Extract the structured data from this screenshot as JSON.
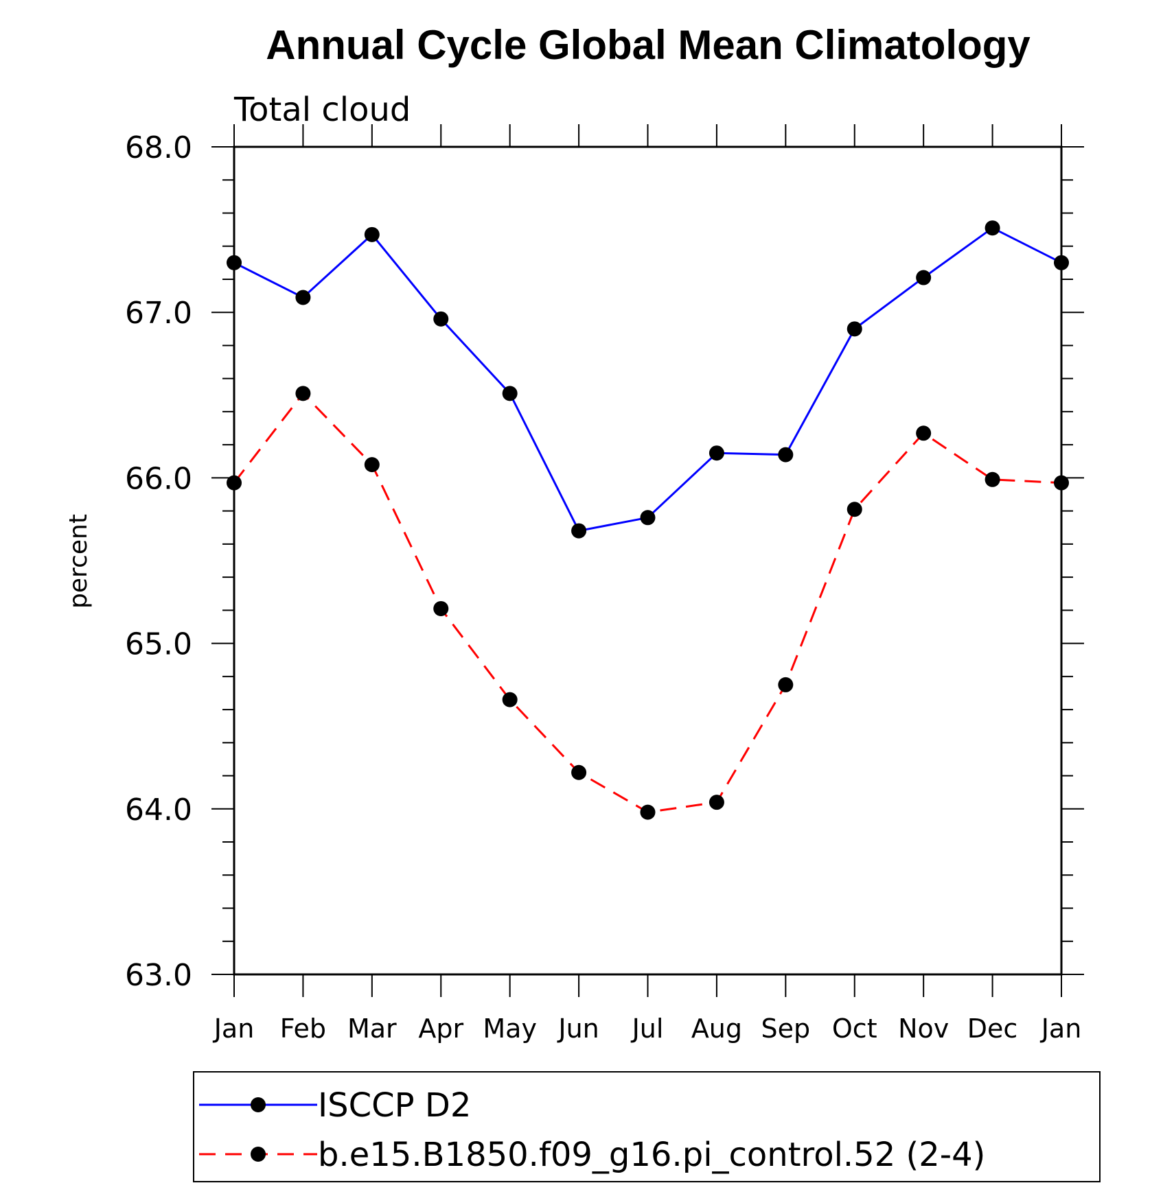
{
  "chart_data": {
    "type": "line",
    "title": "Annual Cycle Global Mean Climatology",
    "subtitle": "Total cloud",
    "xlabel": "",
    "ylabel": "percent",
    "categories": [
      "Jan",
      "Feb",
      "Mar",
      "Apr",
      "May",
      "Jun",
      "Jul",
      "Aug",
      "Sep",
      "Oct",
      "Nov",
      "Dec",
      "Jan"
    ],
    "ylim": [
      63.0,
      68.0
    ],
    "yticks": [
      "63.0",
      "64.0",
      "65.0",
      "66.0",
      "67.0",
      "68.0"
    ],
    "grid": false,
    "legend_position": "bottom",
    "series": [
      {
        "name": "ISCCP D2",
        "color": "#0000ff",
        "line_style": "solid",
        "marker": "filled-circle",
        "values": [
          67.3,
          67.09,
          67.47,
          66.96,
          66.51,
          65.68,
          65.76,
          66.15,
          66.14,
          66.9,
          67.21,
          67.51,
          67.3
        ]
      },
      {
        "name": "b.e15.B1850.f09_g16.pi_control.52 (2-4)",
        "color": "#ff0000",
        "line_style": "dashed",
        "marker": "filled-circle",
        "values": [
          65.97,
          66.51,
          66.08,
          65.21,
          64.66,
          64.22,
          63.98,
          64.04,
          64.75,
          65.81,
          66.27,
          65.99,
          65.97
        ]
      }
    ]
  }
}
